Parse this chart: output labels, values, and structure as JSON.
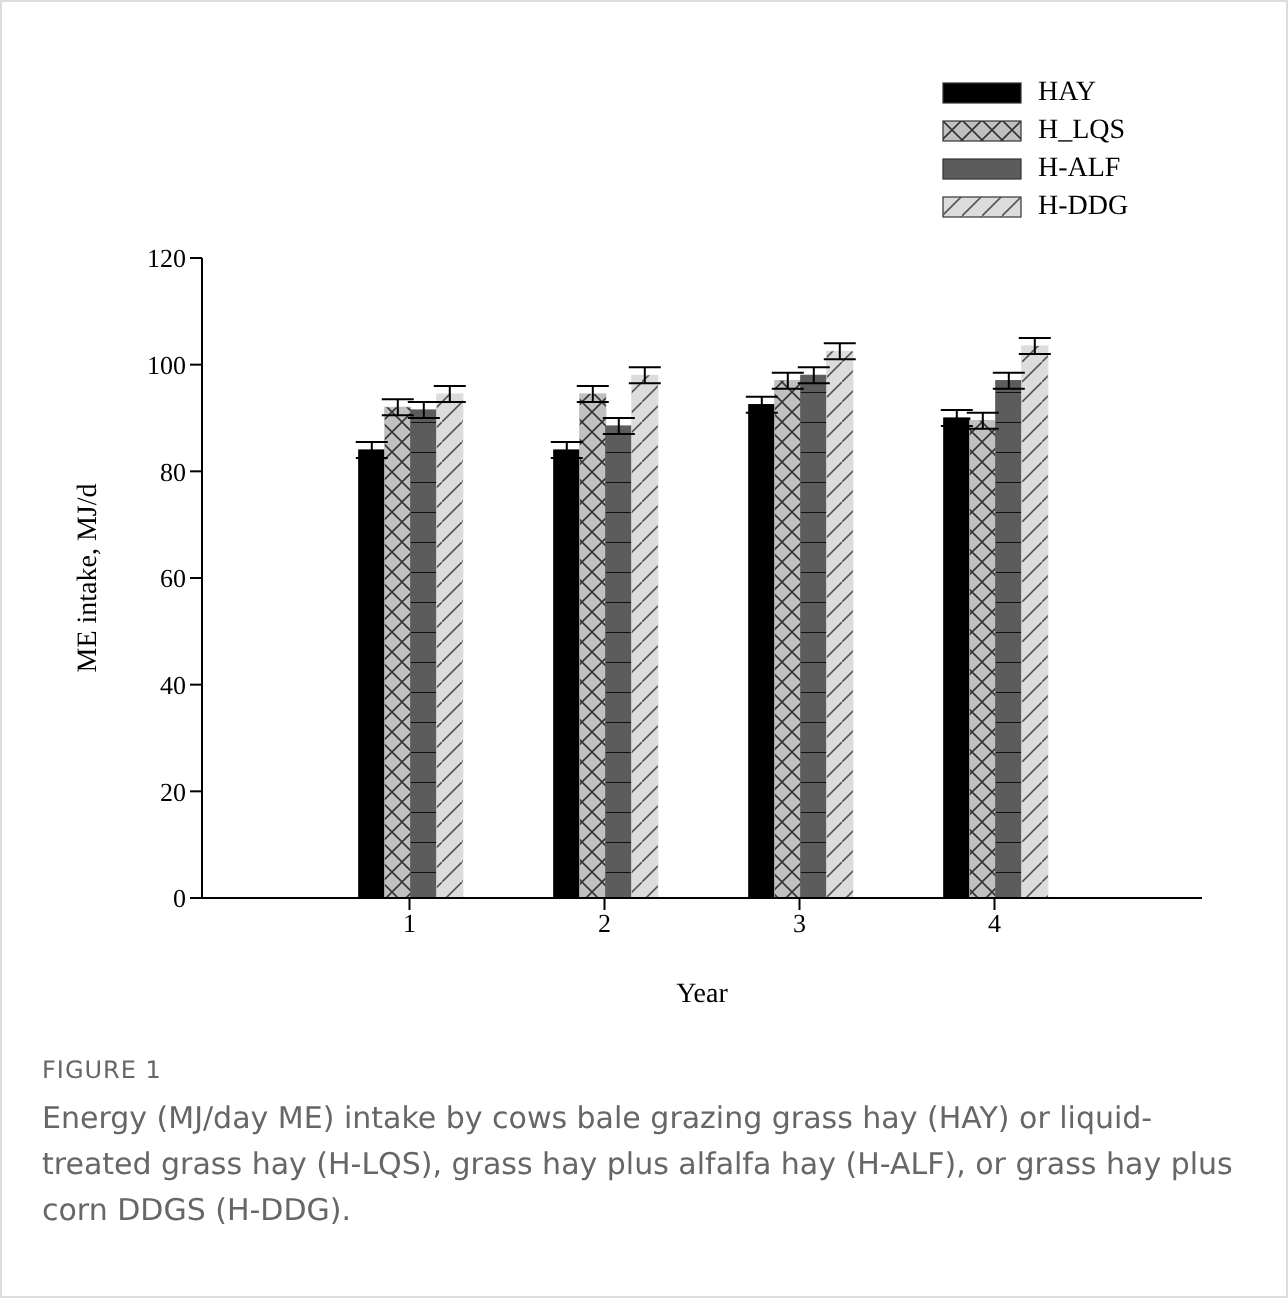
{
  "chart_data": {
    "type": "bar",
    "title": "FIGURE 1",
    "annotations": [
      "Energy (MJ/day ME) intake by cows bale grazing grass hay (HAY) or liquid-treated grass hay (H-LQS), grass hay plus alfalfa hay (H-ALF), or grass hay plus corn DDGS (H-DDG)."
    ],
    "xlabel": "Year",
    "ylabel": "ME intake, MJ/d",
    "categories": [
      "1",
      "2",
      "3",
      "4"
    ],
    "series": [
      {
        "name": "HAY",
        "color": "#000000",
        "values": [
          84,
          84,
          92.5,
          90
        ],
        "errors": [
          1.5,
          1.5,
          1.5,
          1.5
        ]
      },
      {
        "name": "H_LQS",
        "color": "#c0c0c0",
        "values": [
          92,
          94.5,
          97,
          89.5
        ],
        "errors": [
          1.5,
          1.5,
          1.5,
          1.5
        ]
      },
      {
        "name": "H-ALF",
        "color": "#5c5c5c",
        "values": [
          91.5,
          88.5,
          98,
          97
        ],
        "errors": [
          1.5,
          1.5,
          1.5,
          1.5
        ]
      },
      {
        "name": "H-DDG",
        "color": "#dcdcdc",
        "values": [
          94.5,
          98,
          102.5,
          103.5
        ],
        "errors": [
          1.5,
          1.5,
          1.5,
          1.5
        ]
      }
    ],
    "ylim": [
      0,
      120
    ],
    "yticks": [
      0,
      20,
      40,
      60,
      80,
      100,
      120
    ],
    "grid": false,
    "legend": "top right"
  }
}
